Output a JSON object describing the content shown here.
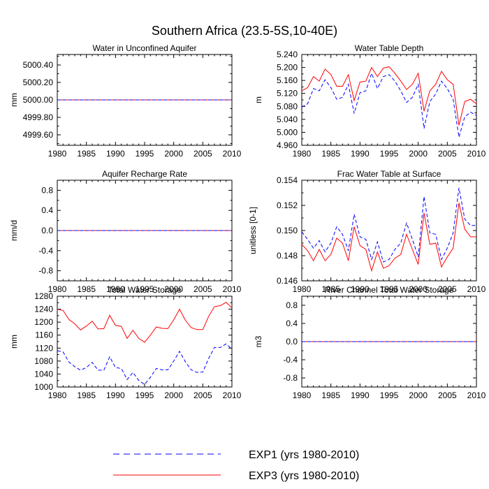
{
  "figure": {
    "title": "Southern Africa (23.5-5S,10-40E)",
    "legend": [
      {
        "label": "EXP1 (yrs 1980-2010)",
        "color": "#0000ff",
        "dash": "dashed"
      },
      {
        "label": "EXP3 (yrs 1980-2010)",
        "color": "#ff0000",
        "dash": "solid"
      }
    ]
  },
  "chart_data": [
    {
      "type": "line",
      "title": "Water in Unconfined Aquifer",
      "xlabel": "",
      "ylabel": "mm",
      "xlim": [
        1980,
        2010
      ],
      "ylim": [
        4999.48,
        5000.52
      ],
      "xticks": [
        1980,
        1985,
        1990,
        1995,
        2000,
        2005,
        2010
      ],
      "xtick_labels": [
        "1980",
        "1985",
        "1990",
        "1995",
        "2000",
        "2005",
        "2010"
      ],
      "yticks": [
        4999.6,
        4999.8,
        5000.0,
        5000.2,
        5000.4
      ],
      "ytick_labels": [
        "4999.60",
        "4999.80",
        "5000.00",
        "5000.20",
        "5000.40"
      ],
      "x": [
        1980,
        1981,
        1982,
        1983,
        1984,
        1985,
        1986,
        1987,
        1988,
        1989,
        1990,
        1991,
        1992,
        1993,
        1994,
        1995,
        1996,
        1997,
        1998,
        1999,
        2000,
        2001,
        2002,
        2003,
        2004,
        2005,
        2006,
        2007,
        2008,
        2009,
        2010
      ],
      "series": [
        {
          "name": "EXP1",
          "color": "#0000ff",
          "values": [
            5000,
            5000,
            5000,
            5000,
            5000,
            5000,
            5000,
            5000,
            5000,
            5000,
            5000,
            5000,
            5000,
            5000,
            5000,
            5000,
            5000,
            5000,
            5000,
            5000,
            5000,
            5000,
            5000,
            5000,
            5000,
            5000,
            5000,
            5000,
            5000,
            5000,
            5000
          ]
        },
        {
          "name": "EXP3",
          "color": "#ff0000",
          "values": [
            5000,
            5000,
            5000,
            5000,
            5000,
            5000,
            5000,
            5000,
            5000,
            5000,
            5000,
            5000,
            5000,
            5000,
            5000,
            5000,
            5000,
            5000,
            5000,
            5000,
            5000,
            5000,
            5000,
            5000,
            5000,
            5000,
            5000,
            5000,
            5000,
            5000,
            5000
          ]
        }
      ]
    },
    {
      "type": "line",
      "title": "Water Table Depth",
      "xlabel": "",
      "ylabel": "m",
      "xlim": [
        1980,
        2010
      ],
      "ylim": [
        4.96,
        5.24
      ],
      "xticks": [
        1980,
        1985,
        1990,
        1995,
        2000,
        2005,
        2010
      ],
      "xtick_labels": [
        "1980",
        "1985",
        "1990",
        "1995",
        "2000",
        "2005",
        "2010"
      ],
      "yticks": [
        4.96,
        5.0,
        5.04,
        5.08,
        5.12,
        5.16,
        5.2,
        5.24
      ],
      "ytick_labels": [
        "4.960",
        "5.000",
        "5.040",
        "5.080",
        "5.120",
        "5.160",
        "5.200",
        "5.240"
      ],
      "x": [
        1980,
        1981,
        1982,
        1983,
        1984,
        1985,
        1986,
        1987,
        1988,
        1989,
        1990,
        1991,
        1992,
        1993,
        1994,
        1995,
        1996,
        1997,
        1998,
        1999,
        2000,
        2001,
        2002,
        2003,
        2004,
        2005,
        2006,
        2007,
        2008,
        2009,
        2010
      ],
      "series": [
        {
          "name": "EXP1",
          "color": "#0000ff",
          "values": [
            5.078,
            5.088,
            5.135,
            5.128,
            5.162,
            5.138,
            5.102,
            5.108,
            5.148,
            5.058,
            5.122,
            5.128,
            5.182,
            5.135,
            5.172,
            5.178,
            5.158,
            5.128,
            5.092,
            5.108,
            5.148,
            5.012,
            5.095,
            5.118,
            5.158,
            5.135,
            5.102,
            4.985,
            5.048,
            5.062,
            5.052
          ]
        },
        {
          "name": "EXP3",
          "color": "#ff0000",
          "values": [
            5.128,
            5.138,
            5.172,
            5.158,
            5.195,
            5.178,
            5.142,
            5.142,
            5.178,
            5.098,
            5.155,
            5.158,
            5.2,
            5.172,
            5.198,
            5.202,
            5.182,
            5.158,
            5.132,
            5.148,
            5.182,
            5.065,
            5.128,
            5.148,
            5.188,
            5.162,
            5.148,
            5.022,
            5.095,
            5.102,
            5.088
          ]
        }
      ]
    },
    {
      "type": "line",
      "title": "Aquifer Recharge Rate",
      "xlabel": "",
      "ylabel": "mm/d",
      "xlim": [
        1980,
        2010
      ],
      "ylim": [
        -1.0,
        1.0
      ],
      "xticks": [
        1980,
        1985,
        1990,
        1995,
        2000,
        2005,
        2010
      ],
      "xtick_labels": [
        "1980",
        "1985",
        "1990",
        "1995",
        "2000",
        "2005",
        "2010"
      ],
      "yticks": [
        -0.8,
        -0.4,
        0.0,
        0.4,
        0.8
      ],
      "ytick_labels": [
        "-0.8",
        "-0.4",
        "0.0",
        "0.4",
        "0.8"
      ],
      "x": [
        1980,
        1981,
        1982,
        1983,
        1984,
        1985,
        1986,
        1987,
        1988,
        1989,
        1990,
        1991,
        1992,
        1993,
        1994,
        1995,
        1996,
        1997,
        1998,
        1999,
        2000,
        2001,
        2002,
        2003,
        2004,
        2005,
        2006,
        2007,
        2008,
        2009,
        2010
      ],
      "series": [
        {
          "name": "EXP1",
          "color": "#0000ff",
          "values": [
            0,
            0,
            0,
            0,
            0,
            0,
            0,
            0,
            0,
            0,
            0,
            0,
            0,
            0,
            0,
            0,
            0,
            0,
            0,
            0,
            0,
            0,
            0,
            0,
            0,
            0,
            0,
            0,
            0,
            0,
            0
          ]
        },
        {
          "name": "EXP3",
          "color": "#ff0000",
          "values": [
            0,
            0,
            0,
            0,
            0,
            0,
            0,
            0,
            0,
            0,
            0,
            0,
            0,
            0,
            0,
            0,
            0,
            0,
            0,
            0,
            0,
            0,
            0,
            0,
            0,
            0,
            0,
            0,
            0,
            0,
            0
          ]
        }
      ]
    },
    {
      "type": "line",
      "title": "Frac Water Table at Surface",
      "xlabel": "",
      "ylabel": "unitless [0-1]",
      "xlim": [
        1980,
        2010
      ],
      "ylim": [
        0.146,
        0.154
      ],
      "xticks": [
        1980,
        1985,
        1990,
        1995,
        2000,
        2005,
        2010
      ],
      "xtick_labels": [
        "1980",
        "1985",
        "1990",
        "1995",
        "2000",
        "2005",
        "2010"
      ],
      "yticks": [
        0.146,
        0.148,
        0.15,
        0.152,
        0.154
      ],
      "ytick_labels": [
        "0.146",
        "0.148",
        "0.150",
        "0.152",
        "0.154"
      ],
      "x": [
        1980,
        1981,
        1982,
        1983,
        1984,
        1985,
        1986,
        1987,
        1988,
        1989,
        1990,
        1991,
        1992,
        1993,
        1994,
        1995,
        1996,
        1997,
        1998,
        1999,
        2000,
        2001,
        2002,
        2003,
        2004,
        2005,
        2006,
        2007,
        2008,
        2009,
        2010
      ],
      "series": [
        {
          "name": "EXP1",
          "color": "#0000ff",
          "values": [
            0.1499,
            0.1493,
            0.1486,
            0.1492,
            0.1483,
            0.149,
            0.1503,
            0.1497,
            0.1484,
            0.1513,
            0.1495,
            0.1493,
            0.1477,
            0.1491,
            0.1475,
            0.1477,
            0.1485,
            0.149,
            0.1506,
            0.1493,
            0.1479,
            0.1527,
            0.1498,
            0.1497,
            0.1477,
            0.1486,
            0.1498,
            0.1534,
            0.1509,
            0.1504,
            0.1504
          ]
        },
        {
          "name": "EXP3",
          "color": "#ff0000",
          "values": [
            0.1489,
            0.1484,
            0.1476,
            0.1485,
            0.1476,
            0.1481,
            0.1494,
            0.149,
            0.1476,
            0.1503,
            0.1488,
            0.1485,
            0.1468,
            0.1483,
            0.147,
            0.1472,
            0.1478,
            0.1481,
            0.1497,
            0.1485,
            0.1473,
            0.1514,
            0.1489,
            0.149,
            0.1471,
            0.1479,
            0.1486,
            0.1522,
            0.1501,
            0.1495,
            0.1495
          ]
        }
      ]
    },
    {
      "type": "line",
      "title": "Total Water Storage",
      "xlabel": "",
      "ylabel": "mm",
      "xlim": [
        1980,
        2010
      ],
      "ylim": [
        1000,
        1280
      ],
      "xticks": [
        1980,
        1985,
        1990,
        1995,
        2000,
        2005,
        2010
      ],
      "xtick_labels": [
        "1980",
        "1985",
        "1990",
        "1995",
        "2000",
        "2005",
        "2010"
      ],
      "yticks": [
        1000,
        1040,
        1080,
        1120,
        1160,
        1200,
        1240,
        1280
      ],
      "ytick_labels": [
        "1000",
        "1040",
        "1080",
        "1120",
        "1160",
        "1200",
        "1240",
        "1280"
      ],
      "x": [
        1980,
        1981,
        1982,
        1983,
        1984,
        1985,
        1986,
        1987,
        1988,
        1989,
        1990,
        1991,
        1992,
        1993,
        1994,
        1995,
        1996,
        1997,
        1998,
        1999,
        2000,
        2001,
        2002,
        2003,
        2004,
        2005,
        2006,
        2007,
        2008,
        2009,
        2010
      ],
      "series": [
        {
          "name": "EXP1",
          "color": "#0000ff",
          "values": [
            1112,
            1108,
            1077,
            1063,
            1052,
            1060,
            1076,
            1052,
            1052,
            1093,
            1060,
            1057,
            1023,
            1045,
            1020,
            1008,
            1030,
            1057,
            1053,
            1053,
            1080,
            1110,
            1078,
            1053,
            1045,
            1046,
            1088,
            1122,
            1122,
            1133,
            1117
          ]
        },
        {
          "name": "EXP3",
          "color": "#ff0000",
          "values": [
            1240,
            1236,
            1208,
            1195,
            1176,
            1188,
            1203,
            1179,
            1180,
            1221,
            1190,
            1187,
            1150,
            1175,
            1150,
            1138,
            1160,
            1185,
            1181,
            1180,
            1207,
            1240,
            1206,
            1183,
            1177,
            1177,
            1218,
            1248,
            1251,
            1261,
            1244
          ]
        }
      ]
    },
    {
      "type": "line",
      "title": "River Channel Total Water Storage",
      "xlabel": "",
      "ylabel": "m3",
      "xlim": [
        1980,
        2010
      ],
      "ylim": [
        -1.0,
        1.0
      ],
      "xticks": [
        1980,
        1985,
        1990,
        1995,
        2000,
        2005,
        2010
      ],
      "xtick_labels": [
        "1980",
        "1985",
        "1990",
        "1995",
        "2000",
        "2005",
        "2010"
      ],
      "yticks": [
        -0.8,
        -0.4,
        0.0,
        0.4,
        0.8
      ],
      "ytick_labels": [
        "-0.8",
        "-0.4",
        "0.0",
        "0.4",
        "0.8"
      ],
      "x": [
        1980,
        1981,
        1982,
        1983,
        1984,
        1985,
        1986,
        1987,
        1988,
        1989,
        1990,
        1991,
        1992,
        1993,
        1994,
        1995,
        1996,
        1997,
        1998,
        1999,
        2000,
        2001,
        2002,
        2003,
        2004,
        2005,
        2006,
        2007,
        2008,
        2009,
        2010
      ],
      "series": [
        {
          "name": "EXP1",
          "color": "#0000ff",
          "values": [
            0,
            0,
            0,
            0,
            0,
            0,
            0,
            0,
            0,
            0,
            0,
            0,
            0,
            0,
            0,
            0,
            0,
            0,
            0,
            0,
            0,
            0,
            0,
            0,
            0,
            0,
            0,
            0,
            0,
            0,
            0
          ]
        },
        {
          "name": "EXP3",
          "color": "#ff0000",
          "values": [
            0,
            0,
            0,
            0,
            0,
            0,
            0,
            0,
            0,
            0,
            0,
            0,
            0,
            0,
            0,
            0,
            0,
            0,
            0,
            0,
            0,
            0,
            0,
            0,
            0,
            0,
            0,
            0,
            0,
            0,
            0
          ]
        }
      ]
    }
  ]
}
